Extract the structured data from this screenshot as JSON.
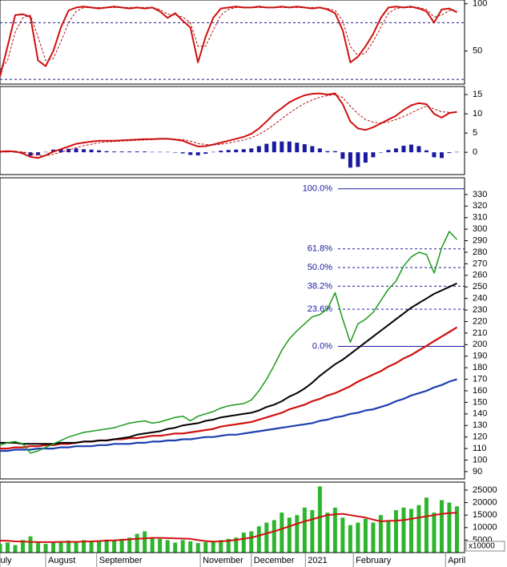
{
  "chart_data": [
    {
      "type": "line",
      "ylim": [
        15,
        104
      ],
      "yticks": [
        100,
        50
      ],
      "levels": [
        80,
        20
      ],
      "level_color": "#1a1a80",
      "series": [
        {
          "color": "#d01010",
          "style": "solid",
          "values": [
            23,
            55,
            88,
            89,
            86,
            40,
            34,
            50,
            75,
            93,
            96,
            97,
            96,
            95,
            96,
            97,
            96,
            95,
            96,
            95,
            96,
            92,
            85,
            90,
            82,
            75,
            38,
            65,
            85,
            95,
            96,
            97,
            96,
            96,
            97,
            96,
            96,
            97,
            96,
            97,
            96,
            95,
            96,
            94,
            90,
            72,
            38,
            44,
            55,
            68,
            85,
            96,
            97,
            96,
            97,
            95,
            92,
            80,
            94,
            95,
            91
          ]
        },
        {
          "color": "#b01010",
          "style": "dashed",
          "values": [
            30,
            40,
            70,
            85,
            88,
            65,
            40,
            42,
            60,
            80,
            92,
            96,
            96,
            96,
            96,
            96,
            96,
            96,
            96,
            96,
            96,
            94,
            89,
            88,
            86,
            80,
            55,
            55,
            72,
            88,
            94,
            96,
            96,
            96,
            96,
            96,
            96,
            96,
            96,
            96,
            96,
            96,
            96,
            95,
            93,
            82,
            55,
            45,
            48,
            60,
            75,
            90,
            95,
            96,
            96,
            96,
            94,
            86,
            88,
            93,
            93
          ]
        }
      ]
    },
    {
      "type": "line",
      "ylim": [
        -5.8,
        17.1
      ],
      "yticks": [
        15,
        10,
        5,
        0
      ],
      "series": [
        {
          "color": "#1a1aa0",
          "type": "bar",
          "values": [
            0.2,
            0.2,
            0,
            -0.4,
            -0.9,
            -0.7,
            0.1,
            0.7,
            0.8,
            0.9,
            1,
            0.8,
            0.7,
            0.5,
            0.3,
            0.2,
            0.2,
            0.2,
            0.2,
            0.2,
            0.1,
            0.1,
            0.1,
            -0.1,
            -0.3,
            -0.7,
            -0.8,
            -0.4,
            0.1,
            0.4,
            0.6,
            0.7,
            0.8,
            1,
            1.6,
            2.2,
            2.8,
            2.8,
            2.8,
            2.5,
            2.1,
            1.6,
            1,
            0.3,
            0.3,
            -1.7,
            -4,
            -3.8,
            -2.7,
            -1.3,
            -0.1,
            0.6,
            1,
            1.7,
            2,
            1.6,
            0.5,
            -1.3,
            -1.5,
            -0.2,
            0.1
          ]
        },
        {
          "color": "#d01010",
          "style": "solid",
          "values": [
            0.2,
            0.3,
            0.2,
            -0.3,
            -1.2,
            -1.5,
            -0.8,
            0.2,
            0.8,
            1.5,
            2.2,
            2.5,
            2.8,
            3,
            3,
            3,
            3.1,
            3.2,
            3.3,
            3.4,
            3.4,
            3.5,
            3.5,
            3.3,
            3,
            2.2,
            1.5,
            1.6,
            2,
            2.5,
            3,
            3.5,
            4,
            4.8,
            6.2,
            8,
            10,
            11.5,
            13,
            14,
            14.8,
            15.2,
            15.3,
            15,
            15.3,
            12.5,
            8,
            6.2,
            5.8,
            6.5,
            7.5,
            8.5,
            9.5,
            11,
            12.2,
            12.8,
            12.5,
            10,
            9,
            10.2,
            10.5
          ]
        },
        {
          "color": "#b01010",
          "style": "dashed",
          "values": [
            0,
            0.1,
            0.2,
            0.1,
            -0.3,
            -0.8,
            -0.9,
            -0.5,
            0,
            0.6,
            1.2,
            1.7,
            2.1,
            2.5,
            2.7,
            2.8,
            2.9,
            3,
            3.1,
            3.2,
            3.3,
            3.4,
            3.4,
            3.4,
            3.3,
            2.9,
            2.3,
            2,
            1.9,
            2.1,
            2.4,
            2.8,
            3.2,
            3.8,
            4.6,
            5.8,
            7.2,
            8.7,
            10.2,
            11.5,
            12.7,
            13.6,
            14.3,
            14.7,
            15,
            14.2,
            12,
            10,
            8.5,
            7.8,
            7.6,
            7.9,
            8.5,
            9.3,
            10.2,
            11.2,
            12,
            11.3,
            10.5,
            10.4,
            10.4
          ]
        }
      ]
    },
    {
      "type": "line",
      "ylim": [
        83.7,
        344.5
      ],
      "yticks": [
        90,
        100,
        110,
        120,
        130,
        140,
        150,
        160,
        170,
        180,
        190,
        200,
        210,
        220,
        230,
        240,
        250,
        260,
        270,
        280,
        290,
        300,
        310,
        320,
        330
      ],
      "fib_color": "#1a1aa0",
      "fib_levels": [
        {
          "label": "100.0%",
          "value": 335,
          "style": "solid"
        },
        {
          "label": "61.8%",
          "value": 282.9,
          "style": "dashed"
        },
        {
          "label": "50.0%",
          "value": 266.75,
          "style": "dashed"
        },
        {
          "label": "38.2%",
          "value": 250.6,
          "style": "dashed"
        },
        {
          "label": "23.6%",
          "value": 230.7,
          "style": "dashed"
        },
        {
          "label": "0.0%",
          "value": 198.5,
          "style": "solid"
        }
      ],
      "series": [
        {
          "color": "#1c3fb0",
          "style": "solid",
          "width": 2.2,
          "values": [
            108,
            108,
            109,
            109,
            109,
            110,
            110,
            110,
            111,
            111,
            112,
            112,
            112,
            113,
            113,
            114,
            114,
            114,
            115,
            115,
            116,
            116,
            117,
            117,
            118,
            118,
            119,
            120,
            120,
            121,
            122,
            122,
            123,
            124,
            125,
            126,
            127,
            128,
            129,
            130,
            131,
            132,
            134,
            135,
            137,
            138,
            140,
            141,
            143,
            144,
            146,
            148,
            151,
            153,
            156,
            158,
            160,
            163,
            165,
            168,
            170
          ]
        },
        {
          "color": "#d01010",
          "style": "solid",
          "width": 2.2,
          "values": [
            110,
            110,
            111,
            111,
            112,
            112,
            113,
            113,
            114,
            114,
            115,
            116,
            116,
            117,
            117,
            118,
            118,
            119,
            119,
            120,
            121,
            121,
            122,
            123,
            123,
            124,
            125,
            126,
            127,
            129,
            130,
            131,
            132,
            133,
            135,
            137,
            139,
            141,
            144,
            146,
            148,
            151,
            153,
            156,
            158,
            161,
            164,
            168,
            171,
            174,
            177,
            181,
            184,
            188,
            191,
            195,
            199,
            203,
            207,
            211,
            215
          ]
        },
        {
          "color": "#000000",
          "style": "solid",
          "width": 2,
          "values": [
            115,
            115,
            115,
            114,
            114,
            114,
            114,
            114,
            115,
            115,
            115,
            116,
            116,
            117,
            117,
            118,
            119,
            120,
            122,
            123,
            124,
            125,
            127,
            128,
            130,
            131,
            132,
            134,
            135,
            137,
            138,
            139,
            140,
            141,
            143,
            146,
            148,
            151,
            155,
            158,
            162,
            167,
            173,
            178,
            183,
            187,
            192,
            197,
            202,
            207,
            212,
            217,
            222,
            227,
            232,
            236,
            240,
            244,
            247,
            250,
            253
          ]
        },
        {
          "color": "#1a9a1a",
          "style": "solid",
          "width": 1.5,
          "values": [
            113,
            115,
            116,
            114,
            106,
            108,
            111,
            114,
            117,
            120,
            122,
            124,
            125,
            126,
            127,
            128,
            130,
            132,
            133,
            134,
            132,
            133,
            135,
            137,
            138,
            134,
            138,
            140,
            142,
            145,
            147,
            148,
            149,
            152,
            160,
            170,
            182,
            195,
            205,
            212,
            218,
            224,
            226,
            231,
            245,
            222,
            202,
            218,
            222,
            228,
            238,
            248,
            255,
            268,
            276,
            280,
            278,
            262,
            284,
            298,
            291
          ]
        }
      ]
    },
    {
      "type": "bar",
      "ylim": [
        0,
        28200
      ],
      "yticks": [
        25000,
        20000,
        15000,
        10000,
        5000
      ],
      "axis_label": "x10000",
      "xlim": [
        0,
        61
      ],
      "xticks": [
        {
          "value": 0,
          "label": "July"
        },
        {
          "value": 6,
          "label": "August"
        },
        {
          "value": 12.7,
          "label": "September"
        },
        {
          "value": 26.3,
          "label": "November"
        },
        {
          "value": 33,
          "label": "December"
        },
        {
          "value": 40.1,
          "label": "2021"
        },
        {
          "value": 46.4,
          "label": "February"
        },
        {
          "value": 58.5,
          "label": "April"
        }
      ],
      "series": [
        {
          "color": "#2db52d",
          "type": "bar",
          "values": [
            3500,
            4000,
            3000,
            5000,
            6500,
            4000,
            3500,
            4200,
            4500,
            4800,
            4000,
            5000,
            4600,
            4800,
            5200,
            5000,
            5500,
            6000,
            7500,
            8500,
            6000,
            5500,
            5000,
            4000,
            5000,
            4500,
            3800,
            4200,
            4500,
            5000,
            5500,
            6000,
            8000,
            8500,
            10500,
            12000,
            13000,
            16000,
            14000,
            15000,
            18000,
            17000,
            26500,
            16000,
            18000,
            14000,
            11000,
            12000,
            13500,
            12000,
            15000,
            12500,
            17000,
            18000,
            17500,
            19000,
            22000,
            16000,
            21000,
            20000,
            18500
          ]
        },
        {
          "color": "#d01010",
          "style": "solid",
          "width": 2,
          "values": [
            4800,
            4700,
            4500,
            4400,
            4300,
            4200,
            4200,
            4200,
            4300,
            4300,
            4300,
            4400,
            4500,
            4600,
            4800,
            4900,
            5100,
            5300,
            5500,
            5700,
            5900,
            5900,
            5800,
            5700,
            5600,
            5500,
            5000,
            4600,
            4400,
            4500,
            4700,
            5100,
            5500,
            6000,
            6800,
            7700,
            8500,
            9500,
            10500,
            11500,
            12500,
            13300,
            14200,
            15000,
            15300,
            15500,
            15000,
            14500,
            14000,
            13200,
            12500,
            12700,
            12800,
            13000,
            13500,
            14000,
            14500,
            15000,
            15500,
            15800,
            16000
          ]
        }
      ]
    }
  ]
}
